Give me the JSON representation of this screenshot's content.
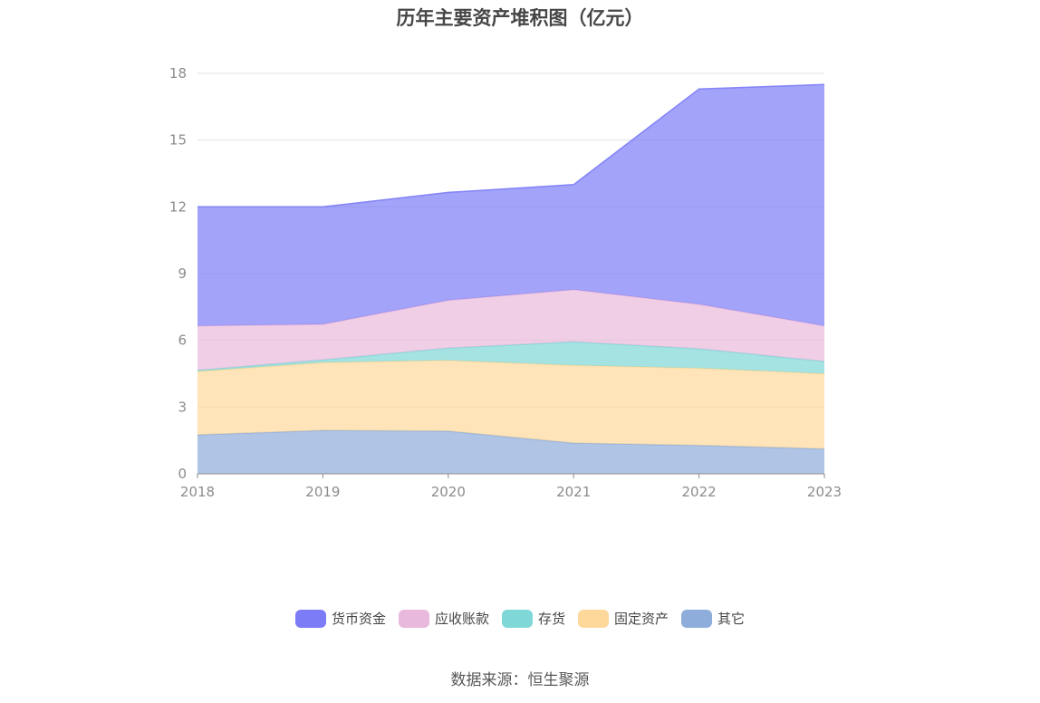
{
  "title": "历年主要资产堆积图（亿元）",
  "source": "数据来源：恒生聚源",
  "chart_data": {
    "type": "area",
    "stacked": true,
    "title": "历年主要资产堆积图（亿元）",
    "categories": [
      "2018",
      "2019",
      "2020",
      "2021",
      "2022",
      "2023"
    ],
    "ylim": [
      0,
      18
    ],
    "yticks": [
      0,
      3,
      6,
      9,
      12,
      15,
      18
    ],
    "grid": true,
    "legend_position": "bottom",
    "series": [
      {
        "name": "其它",
        "color": "#8fadda",
        "values": [
          1.75,
          1.95,
          1.92,
          1.38,
          1.28,
          1.12
        ]
      },
      {
        "name": "固定资产",
        "color": "#fdd89a",
        "values": [
          2.85,
          3.05,
          3.18,
          3.5,
          3.47,
          3.38
        ]
      },
      {
        "name": "存货",
        "color": "#7fd7d7",
        "values": [
          0.05,
          0.12,
          0.55,
          1.05,
          0.87,
          0.55
        ]
      },
      {
        "name": "应收账款",
        "color": "#e8b9dc",
        "values": [
          2.0,
          1.6,
          2.15,
          2.35,
          2.0,
          1.6
        ]
      },
      {
        "name": "货币资金",
        "color": "#7b7cf6",
        "values": [
          5.35,
          5.28,
          4.85,
          4.72,
          9.68,
          10.85
        ]
      }
    ]
  }
}
